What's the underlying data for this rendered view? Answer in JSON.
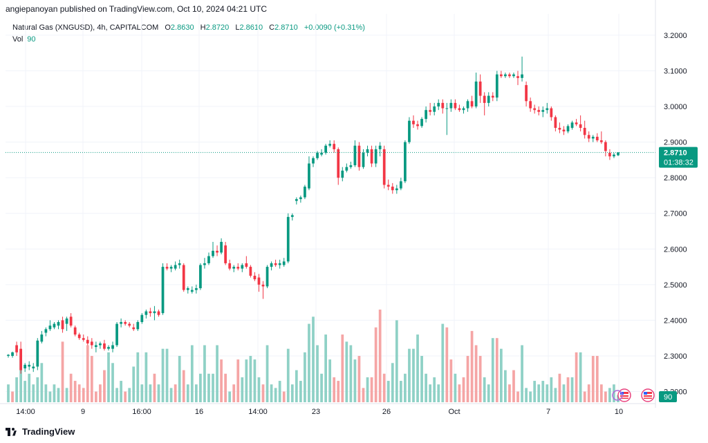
{
  "header": {
    "published": "angiepanoyan published on TradingView.com, Oct 10, 2024 04:21 UTC",
    "symbol": "Natural Gas (XNGUSD), 4h, CAPITALCOM",
    "o_label": "O",
    "o": "2.8630",
    "h_label": "H",
    "h": "2.8720",
    "l_label": "L",
    "l": "2.8610",
    "c_label": "C",
    "c": "2.8710",
    "change": "+0.0090 (+0.31%)",
    "vol_label": "Vol",
    "vol": "90"
  },
  "price_tag": {
    "price": "2.8710",
    "countdown": "01:38:32"
  },
  "vol_tag": "90",
  "brand": "TradingView",
  "colors": {
    "up": "#089981",
    "down": "#f23645",
    "up_vol": "#8fd1c6",
    "down_vol": "#f5a5a5",
    "grid": "#f0f3fa",
    "text": "#131722"
  },
  "chart_data": {
    "type": "candlestick",
    "ylim": [
      2.17,
      3.26
    ],
    "yticks": [
      "3.2000",
      "3.1000",
      "3.0000",
      "2.9000",
      "2.8000",
      "2.7000",
      "2.6000",
      "2.5000",
      "2.4000",
      "2.3000",
      "2.2000"
    ],
    "xticks": [
      "14:00",
      "9",
      "16:00",
      "16",
      "14:00",
      "23",
      "26",
      "Oct",
      "7",
      "10"
    ],
    "candles": [
      [
        2.3,
        2.305,
        2.295,
        2.303
      ],
      [
        2.3,
        2.312,
        2.295,
        2.31
      ],
      [
        2.33,
        2.34,
        2.3,
        2.31
      ],
      [
        2.32,
        2.34,
        2.25,
        2.26
      ],
      [
        2.265,
        2.28,
        2.255,
        2.275
      ],
      [
        2.27,
        2.285,
        2.26,
        2.275
      ],
      [
        2.265,
        2.28,
        2.255,
        2.27
      ],
      [
        2.27,
        2.35,
        2.26,
        2.343
      ],
      [
        2.34,
        2.37,
        2.335,
        2.36
      ],
      [
        2.365,
        2.38,
        2.355,
        2.375
      ],
      [
        2.375,
        2.4,
        2.37,
        2.385
      ],
      [
        2.38,
        2.395,
        2.375,
        2.39
      ],
      [
        2.385,
        2.4,
        2.375,
        2.395
      ],
      [
        2.4,
        2.41,
        2.365,
        2.375
      ],
      [
        2.39,
        2.41,
        2.37,
        2.405
      ],
      [
        2.41,
        2.42,
        2.38,
        2.385
      ],
      [
        2.38,
        2.385,
        2.355,
        2.36
      ],
      [
        2.36,
        2.365,
        2.345,
        2.35
      ],
      [
        2.35,
        2.36,
        2.34,
        2.345
      ],
      [
        2.345,
        2.355,
        2.33,
        2.335
      ],
      [
        2.34,
        2.35,
        2.32,
        2.33
      ],
      [
        2.325,
        2.34,
        2.31,
        2.33
      ],
      [
        2.33,
        2.34,
        2.32,
        2.335
      ],
      [
        2.335,
        2.345,
        2.315,
        2.32
      ],
      [
        2.32,
        2.33,
        2.315,
        2.325
      ],
      [
        2.32,
        2.34,
        2.31,
        2.33
      ],
      [
        2.33,
        2.395,
        2.325,
        2.39
      ],
      [
        2.39,
        2.405,
        2.38,
        2.395
      ],
      [
        2.395,
        2.4,
        2.385,
        2.39
      ],
      [
        2.39,
        2.395,
        2.38,
        2.385
      ],
      [
        2.38,
        2.39,
        2.37,
        2.375
      ],
      [
        2.375,
        2.4,
        2.37,
        2.395
      ],
      [
        2.395,
        2.42,
        2.39,
        2.415
      ],
      [
        2.415,
        2.43,
        2.405,
        2.425
      ],
      [
        2.425,
        2.435,
        2.41,
        2.42
      ],
      [
        2.42,
        2.44,
        2.4,
        2.425
      ],
      [
        2.425,
        2.43,
        2.41,
        2.415
      ],
      [
        2.42,
        2.56,
        2.415,
        2.55
      ],
      [
        2.55,
        2.56,
        2.54,
        2.545
      ],
      [
        2.545,
        2.555,
        2.535,
        2.55
      ],
      [
        2.545,
        2.565,
        2.54,
        2.555
      ],
      [
        2.555,
        2.57,
        2.545,
        2.56
      ],
      [
        2.555,
        2.56,
        2.48,
        2.485
      ],
      [
        2.485,
        2.495,
        2.475,
        2.49
      ],
      [
        2.48,
        2.495,
        2.475,
        2.485
      ],
      [
        2.485,
        2.5,
        2.475,
        2.49
      ],
      [
        2.49,
        2.56,
        2.485,
        2.555
      ],
      [
        2.555,
        2.575,
        2.545,
        2.56
      ],
      [
        2.56,
        2.59,
        2.555,
        2.58
      ],
      [
        2.58,
        2.62,
        2.575,
        2.595
      ],
      [
        2.595,
        2.61,
        2.58,
        2.59
      ],
      [
        2.59,
        2.63,
        2.585,
        2.62
      ],
      [
        2.61,
        2.62,
        2.555,
        2.56
      ],
      [
        2.56,
        2.57,
        2.54,
        2.545
      ],
      [
        2.545,
        2.555,
        2.535,
        2.55
      ],
      [
        2.55,
        2.56,
        2.54,
        2.545
      ],
      [
        2.545,
        2.56,
        2.535,
        2.555
      ],
      [
        2.56,
        2.58,
        2.545,
        2.55
      ],
      [
        2.55,
        2.555,
        2.52,
        2.525
      ],
      [
        2.525,
        2.535,
        2.51,
        2.515
      ],
      [
        2.52,
        2.53,
        2.48,
        2.5
      ],
      [
        2.5,
        2.51,
        2.46,
        2.495
      ],
      [
        2.495,
        2.555,
        2.49,
        2.55
      ],
      [
        2.55,
        2.565,
        2.54,
        2.56
      ],
      [
        2.56,
        2.57,
        2.55,
        2.555
      ],
      [
        2.555,
        2.57,
        2.545,
        2.56
      ],
      [
        2.555,
        2.575,
        2.55,
        2.565
      ],
      [
        2.565,
        2.7,
        2.56,
        2.69
      ],
      [
        2.69,
        2.7,
        2.68,
        2.695
      ],
      [
        2.735,
        2.745,
        2.725,
        2.74
      ],
      [
        2.74,
        2.75,
        2.73,
        2.745
      ],
      [
        2.745,
        2.78,
        2.74,
        2.775
      ],
      [
        2.77,
        2.86,
        2.765,
        2.84
      ],
      [
        2.84,
        2.86,
        2.83,
        2.855
      ],
      [
        2.855,
        2.875,
        2.85,
        2.87
      ],
      [
        2.865,
        2.88,
        2.86,
        2.87
      ],
      [
        2.87,
        2.895,
        2.865,
        2.89
      ],
      [
        2.89,
        2.905,
        2.885,
        2.895
      ],
      [
        2.895,
        2.905,
        2.87,
        2.88
      ],
      [
        2.88,
        2.885,
        2.78,
        2.8
      ],
      [
        2.8,
        2.83,
        2.79,
        2.82
      ],
      [
        2.82,
        2.84,
        2.815,
        2.83
      ],
      [
        2.83,
        2.845,
        2.825,
        2.835
      ],
      [
        2.835,
        2.905,
        2.83,
        2.89
      ],
      [
        2.89,
        2.9,
        2.82,
        2.83
      ],
      [
        2.83,
        2.88,
        2.825,
        2.87
      ],
      [
        2.87,
        2.89,
        2.86,
        2.88
      ],
      [
        2.88,
        2.89,
        2.83,
        2.84
      ],
      [
        2.84,
        2.89,
        2.83,
        2.88
      ],
      [
        2.88,
        2.9,
        2.86,
        2.89
      ],
      [
        2.88,
        2.89,
        2.77,
        2.78
      ],
      [
        2.78,
        2.795,
        2.765,
        2.775
      ],
      [
        2.775,
        2.785,
        2.755,
        2.765
      ],
      [
        2.765,
        2.78,
        2.755,
        2.77
      ],
      [
        2.77,
        2.8,
        2.765,
        2.79
      ],
      [
        2.79,
        2.905,
        2.785,
        2.9
      ],
      [
        2.9,
        2.97,
        2.895,
        2.96
      ],
      [
        2.96,
        2.975,
        2.94,
        2.95
      ],
      [
        2.95,
        2.96,
        2.935,
        2.945
      ],
      [
        2.945,
        2.97,
        2.94,
        2.965
      ],
      [
        2.965,
        3.0,
        2.955,
        2.99
      ],
      [
        2.99,
        3.01,
        2.975,
        2.985
      ],
      [
        2.985,
        3.01,
        2.975,
        3.0
      ],
      [
        3.0,
        3.02,
        2.99,
        3.01
      ],
      [
        3.01,
        3.02,
        2.98,
        2.995
      ],
      [
        2.995,
        3.01,
        2.92,
        2.995
      ],
      [
        2.995,
        3.02,
        2.985,
        3.01
      ],
      [
        3.01,
        3.02,
        2.99,
        2.995
      ],
      [
        2.995,
        3.005,
        2.985,
        2.99
      ],
      [
        2.99,
        3.0,
        2.98,
        2.995
      ],
      [
        2.995,
        3.02,
        2.985,
        3.015
      ],
      [
        3.015,
        3.03,
        2.995,
        3.0
      ],
      [
        3.0,
        3.095,
        2.995,
        3.07
      ],
      [
        3.07,
        3.09,
        3.01,
        3.03
      ],
      [
        3.03,
        3.04,
        2.975,
        3.01
      ],
      [
        3.01,
        3.04,
        3.0,
        3.03
      ],
      [
        3.03,
        3.04,
        3.015,
        3.025
      ],
      [
        3.025,
        3.1,
        3.015,
        3.09
      ],
      [
        3.09,
        3.1,
        3.08,
        3.085
      ],
      [
        3.085,
        3.095,
        3.08,
        3.09
      ],
      [
        3.09,
        3.095,
        3.08,
        3.085
      ],
      [
        3.085,
        3.095,
        3.08,
        3.09
      ],
      [
        3.085,
        3.1,
        3.06,
        3.08
      ],
      [
        3.08,
        3.14,
        3.07,
        3.09
      ],
      [
        3.06,
        3.07,
        3.0,
        3.015
      ],
      [
        3.015,
        3.025,
        2.985,
        2.995
      ],
      [
        2.995,
        3.005,
        2.98,
        2.99
      ],
      [
        2.99,
        3.0,
        2.975,
        2.985
      ],
      [
        2.985,
        3.0,
        2.97,
        2.99
      ],
      [
        2.99,
        3.01,
        2.98,
        2.995
      ],
      [
        2.995,
        3.0,
        2.96,
        2.97
      ],
      [
        2.97,
        2.975,
        2.93,
        2.94
      ],
      [
        2.94,
        2.955,
        2.925,
        2.935
      ],
      [
        2.935,
        2.945,
        2.92,
        2.93
      ],
      [
        2.93,
        2.95,
        2.925,
        2.945
      ],
      [
        2.94,
        2.96,
        2.935,
        2.955
      ],
      [
        2.955,
        2.965,
        2.945,
        2.95
      ],
      [
        2.95,
        2.975,
        2.93,
        2.94
      ],
      [
        2.94,
        2.96,
        2.91,
        2.92
      ],
      [
        2.92,
        2.93,
        2.9,
        2.91
      ],
      [
        2.91,
        2.92,
        2.9,
        2.915
      ],
      [
        2.915,
        2.925,
        2.9,
        2.905
      ],
      [
        2.905,
        2.93,
        2.895,
        2.9
      ],
      [
        2.9,
        2.905,
        2.86,
        2.875
      ],
      [
        2.87,
        2.88,
        2.85,
        2.86
      ],
      [
        2.86,
        2.87,
        2.855,
        2.865
      ],
      [
        2.863,
        2.872,
        2.861,
        2.871
      ]
    ],
    "volumes": [
      [
        2.22,
        1
      ],
      [
        2.2,
        0
      ],
      [
        2.24,
        1
      ],
      [
        2.3,
        1
      ],
      [
        2.23,
        1
      ],
      [
        2.25,
        1
      ],
      [
        2.22,
        1
      ],
      [
        2.24,
        1
      ],
      [
        2.28,
        1
      ],
      [
        2.22,
        1
      ],
      [
        2.2,
        1
      ],
      [
        2.22,
        1
      ],
      [
        2.21,
        1
      ],
      [
        2.34,
        0
      ],
      [
        2.21,
        1
      ],
      [
        2.25,
        0
      ],
      [
        2.23,
        0
      ],
      [
        2.22,
        0
      ],
      [
        2.21,
        0
      ],
      [
        2.33,
        0
      ],
      [
        2.3,
        0
      ],
      [
        2.2,
        0
      ],
      [
        2.22,
        0
      ],
      [
        2.26,
        0
      ],
      [
        2.31,
        1
      ],
      [
        2.28,
        1
      ],
      [
        2.21,
        1
      ],
      [
        2.23,
        1
      ],
      [
        2.2,
        0
      ],
      [
        2.21,
        1
      ],
      [
        2.27,
        1
      ],
      [
        2.31,
        1
      ],
      [
        2.22,
        1
      ],
      [
        2.31,
        1
      ],
      [
        2.22,
        1
      ],
      [
        2.25,
        0
      ],
      [
        2.22,
        1
      ],
      [
        2.32,
        1
      ],
      [
        2.32,
        1
      ],
      [
        2.21,
        1
      ],
      [
        2.22,
        0
      ],
      [
        2.3,
        1
      ],
      [
        2.26,
        0
      ],
      [
        2.22,
        1
      ],
      [
        2.33,
        1
      ],
      [
        2.22,
        1
      ],
      [
        2.25,
        1
      ],
      [
        2.33,
        1
      ],
      [
        2.25,
        1
      ],
      [
        2.25,
        1
      ],
      [
        2.33,
        1
      ],
      [
        2.29,
        0
      ],
      [
        2.25,
        0
      ],
      [
        2.2,
        1
      ],
      [
        2.22,
        0
      ],
      [
        2.29,
        0
      ],
      [
        2.24,
        1
      ],
      [
        2.29,
        1
      ],
      [
        2.3,
        1
      ],
      [
        2.29,
        1
      ],
      [
        2.24,
        1
      ],
      [
        2.22,
        0
      ],
      [
        2.33,
        1
      ],
      [
        2.22,
        1
      ],
      [
        2.21,
        1
      ],
      [
        2.23,
        1
      ],
      [
        2.2,
        0
      ],
      [
        2.32,
        1
      ],
      [
        2.22,
        1
      ],
      [
        2.26,
        1
      ],
      [
        2.23,
        1
      ],
      [
        2.31,
        1
      ],
      [
        2.39,
        1
      ],
      [
        2.41,
        1
      ],
      [
        2.33,
        1
      ],
      [
        2.25,
        1
      ],
      [
        2.36,
        1
      ],
      [
        2.29,
        1
      ],
      [
        2.24,
        0
      ],
      [
        2.23,
        0
      ],
      [
        2.36,
        0
      ],
      [
        2.34,
        1
      ],
      [
        2.33,
        1
      ],
      [
        2.29,
        1
      ],
      [
        2.3,
        0
      ],
      [
        2.21,
        0
      ],
      [
        2.24,
        1
      ],
      [
        2.24,
        0
      ],
      [
        2.38,
        0
      ],
      [
        2.43,
        0
      ],
      [
        2.25,
        0
      ],
      [
        2.23,
        1
      ],
      [
        2.28,
        1
      ],
      [
        2.4,
        1
      ],
      [
        2.23,
        1
      ],
      [
        2.25,
        1
      ],
      [
        2.32,
        1
      ],
      [
        2.32,
        1
      ],
      [
        2.36,
        1
      ],
      [
        2.3,
        1
      ],
      [
        2.25,
        1
      ],
      [
        2.22,
        1
      ],
      [
        2.24,
        1
      ],
      [
        2.22,
        1
      ],
      [
        2.39,
        1
      ],
      [
        2.38,
        0
      ],
      [
        2.29,
        0
      ],
      [
        2.25,
        1
      ],
      [
        2.22,
        0
      ],
      [
        2.24,
        0
      ],
      [
        2.3,
        0
      ],
      [
        2.37,
        0
      ],
      [
        2.33,
        0
      ],
      [
        2.3,
        0
      ],
      [
        2.24,
        1
      ],
      [
        2.22,
        1
      ],
      [
        2.35,
        1
      ],
      [
        2.35,
        0
      ],
      [
        2.32,
        1
      ],
      [
        2.26,
        1
      ],
      [
        2.22,
        0
      ],
      [
        2.26,
        0
      ],
      [
        2.2,
        0
      ],
      [
        2.33,
        1
      ],
      [
        2.21,
        1
      ],
      [
        2.2,
        1
      ],
      [
        2.23,
        1
      ],
      [
        2.22,
        1
      ],
      [
        2.23,
        1
      ],
      [
        2.22,
        1
      ],
      [
        2.24,
        1
      ],
      [
        2.21,
        1
      ],
      [
        2.25,
        0
      ],
      [
        2.22,
        1
      ],
      [
        2.24,
        0
      ],
      [
        2.24,
        1
      ],
      [
        2.31,
        0
      ],
      [
        2.31,
        1
      ],
      [
        2.2,
        0
      ],
      [
        2.22,
        0
      ],
      [
        2.3,
        0
      ],
      [
        2.3,
        0
      ],
      [
        2.22,
        0
      ],
      [
        2.2,
        0
      ],
      [
        2.21,
        1
      ],
      [
        2.22,
        1
      ],
      [
        2.19,
        1
      ]
    ],
    "vol_scale": [
      2.17,
      2.43
    ]
  }
}
